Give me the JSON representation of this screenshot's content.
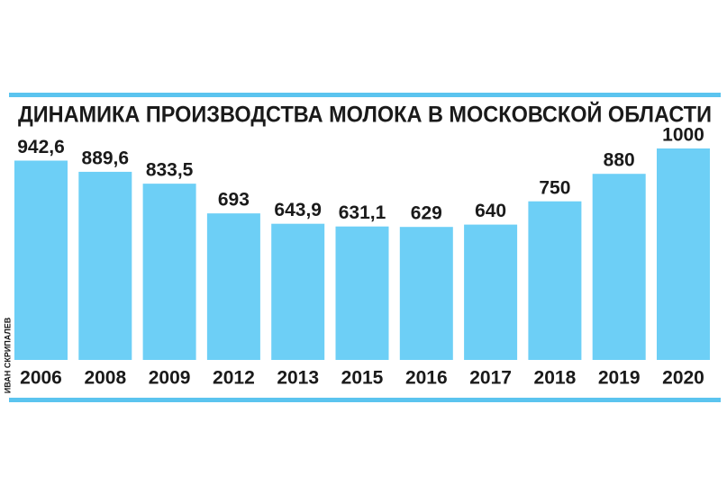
{
  "chart_data": {
    "type": "bar",
    "title": "ДИНАМИКА ПРОИЗВОДСТВА МОЛОКА В МОСКОВСКОЙ ОБЛАСТИ",
    "credit": "ИВАН СКРИПАЛЕВ",
    "categories": [
      "2006",
      "2008",
      "2009",
      "2012",
      "2013",
      "2015",
      "2016",
      "2017",
      "2018",
      "2019",
      "2020"
    ],
    "values": [
      942.6,
      889.6,
      833.5,
      693,
      643.9,
      631.1,
      629,
      640,
      750,
      880,
      1000
    ],
    "value_labels": [
      "942,6",
      "889,6",
      "833,5",
      "693",
      "643,9",
      "631,1",
      "629",
      "640",
      "750",
      "880",
      "1000"
    ],
    "color": "#6dcff6"
  }
}
